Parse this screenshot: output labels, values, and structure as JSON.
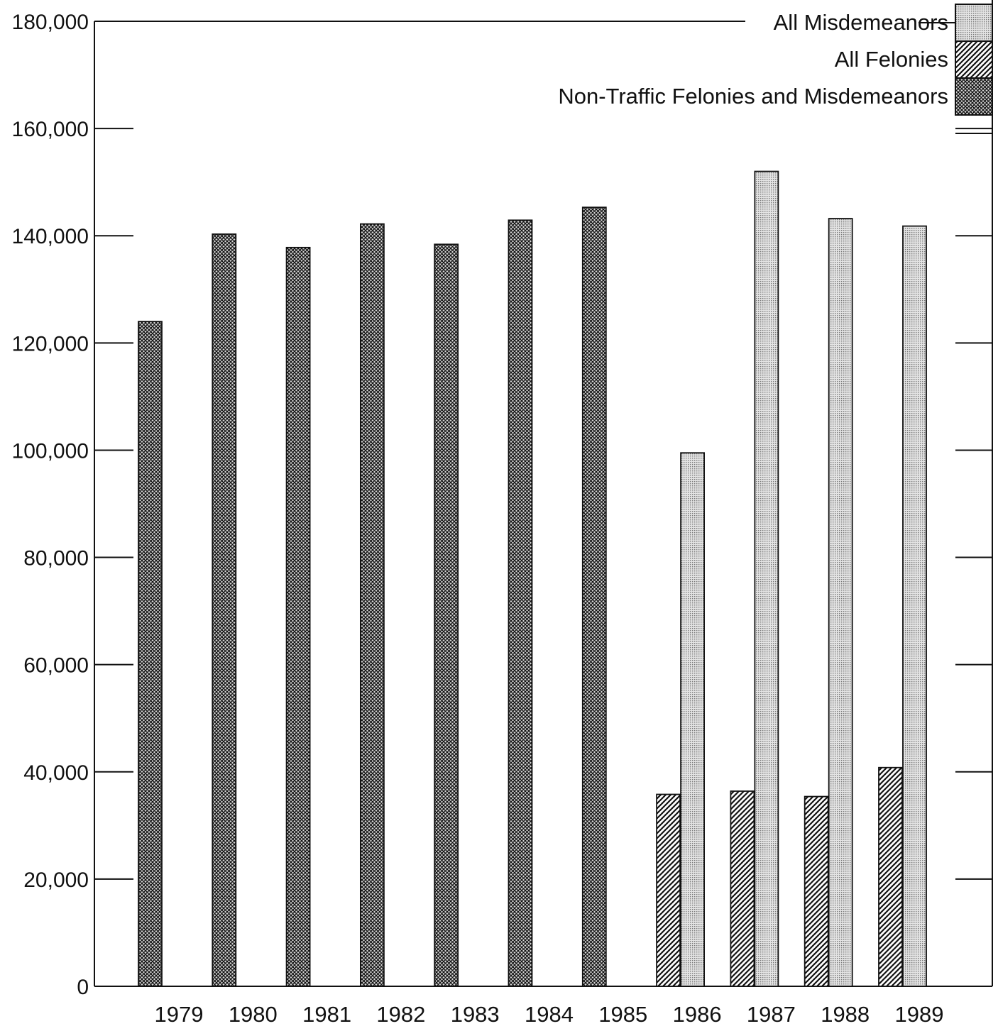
{
  "chart_data": {
    "type": "bar",
    "categories": [
      "1979",
      "1980",
      "1981",
      "1982",
      "1983",
      "1984",
      "1985",
      "1986",
      "1987",
      "1988",
      "1989"
    ],
    "series": [
      {
        "name": "All Misdemeanors",
        "pattern": "dots",
        "color": "#bdbdbd",
        "values": [
          null,
          null,
          null,
          null,
          null,
          null,
          null,
          99500,
          152000,
          143200,
          141800
        ]
      },
      {
        "name": "All Felonies",
        "pattern": "diagonal",
        "color": "#222222",
        "values": [
          null,
          null,
          null,
          null,
          null,
          null,
          null,
          35800,
          36400,
          35400,
          40800
        ]
      },
      {
        "name": "Non-Traffic Felonies and Misdemeanors",
        "pattern": "crosshatch",
        "color": "#333333",
        "values": [
          124000,
          140300,
          137800,
          142200,
          138400,
          142900,
          145300,
          null,
          null,
          null,
          null
        ]
      }
    ],
    "y_ticks": [
      "0",
      "20,000",
      "40,000",
      "60,000",
      "80,000",
      "100,000",
      "120,000",
      "140,000",
      "160,000",
      "180,000"
    ],
    "ylim": [
      0,
      180000
    ],
    "grid": false,
    "legend_position": "top-right",
    "title": "",
    "xlabel": "",
    "ylabel": ""
  }
}
